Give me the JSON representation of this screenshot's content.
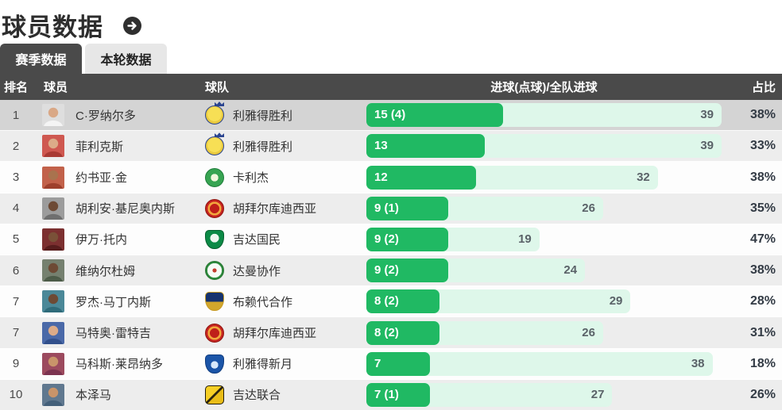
{
  "title": "球员数据",
  "title_arrow_icon": "arrow-right",
  "tabs": [
    {
      "label": "赛季数据",
      "active": true
    },
    {
      "label": "本轮数据",
      "active": false
    }
  ],
  "table": {
    "headers": {
      "rank": "排名",
      "player": "球员",
      "team": "球队",
      "goals": "进球(点球)/全队进球",
      "share": "占比"
    },
    "max_total": 39,
    "rows": [
      {
        "rank": "1",
        "player": "C·罗纳尔多",
        "team": "利雅得胜利",
        "goals_label": "15 (4)",
        "goals": 15,
        "team_total": 39,
        "share": "38%",
        "highlight": true,
        "avatar": {
          "bg": "#dedede",
          "jersey": "#f4f4f4",
          "skin": "#d9a886"
        },
        "logo": {
          "shape": "circle",
          "bg": "radial-gradient(circle at 50% 45%, #f7df55 0 55%, #e9c93e 56% 100%)",
          "border": "#2a4490",
          "crown": true
        }
      },
      {
        "rank": "2",
        "player": "菲利克斯",
        "team": "利雅得胜利",
        "goals_label": "13",
        "goals": 13,
        "team_total": 39,
        "share": "33%",
        "avatar": {
          "bg": "#cf5850",
          "jersey": "#a93a33",
          "skin": "#dcab88"
        },
        "logo": {
          "shape": "circle",
          "bg": "radial-gradient(circle at 50% 45%, #f7df55 0 55%, #e9c93e 56% 100%)",
          "border": "#2a4490",
          "crown": true
        }
      },
      {
        "rank": "3",
        "player": "约书亚·金",
        "team": "卡利杰",
        "goals_label": "12",
        "goals": 12,
        "team_total": 32,
        "share": "38%",
        "avatar": {
          "bg": "#c2614a",
          "jersey": "#9e3f2c",
          "skin": "#a9734e"
        },
        "logo": {
          "shape": "circle",
          "bg": "radial-gradient(circle at 50% 50%, #f1f7dd 0 30%, #37a452 31% 100%)",
          "border": "#1f7c3a"
        }
      },
      {
        "rank": "4",
        "player": "胡利安·基尼奥内斯",
        "team": "胡拜尔库迪西亚",
        "goals_label": "9 (1)",
        "goals": 9,
        "team_total": 26,
        "share": "35%",
        "avatar": {
          "bg": "#9c9c9c",
          "jersey": "#6f6f6f",
          "skin": "#6d4a35"
        },
        "logo": {
          "shape": "circle",
          "bg": "radial-gradient(circle, #bf1f1a 0 38%, #f2a73d 39% 55%, #c62421 56% 100%)",
          "border": "#8f1510"
        }
      },
      {
        "rank": "5",
        "player": "伊万·托内",
        "team": "吉达国民",
        "goals_label": "9 (2)",
        "goals": 9,
        "team_total": 19,
        "share": "47%",
        "avatar": {
          "bg": "#7c3030",
          "jersey": "#571d1d",
          "skin": "#7a5138"
        },
        "logo": {
          "shape": "shield",
          "bg": "radial-gradient(circle at 50% 42%, #eef7ef 0 32%, #0c8a46 33% 100%)",
          "border": "#06602f"
        }
      },
      {
        "rank": "6",
        "player": "维纳尔杜姆",
        "team": "达曼协作",
        "goals_label": "9 (2)",
        "goals": 9,
        "team_total": 24,
        "share": "38%",
        "avatar": {
          "bg": "#75806f",
          "jersey": "#4d5c49",
          "skin": "#6d4a35"
        },
        "logo": {
          "shape": "circle",
          "bg": "radial-gradient(circle, #c53c2e 0 16%, #f7fbf6 17% 58%, #2f8b3f 59% 100%)",
          "border": "#27742f"
        }
      },
      {
        "rank": "7",
        "player": "罗杰·马丁内斯",
        "team": "布赖代合作",
        "goals_label": "8 (2)",
        "goals": 8,
        "team_total": 29,
        "share": "28%",
        "avatar": {
          "bg": "#4b8898",
          "jersey": "#2f6b7a",
          "skin": "#6d4a35"
        },
        "logo": {
          "shape": "shield",
          "bg": "linear-gradient(180deg, #16336e 0 52%, #d2a62c 53% 100%)",
          "border": "#c79b25"
        }
      },
      {
        "rank": "7",
        "player": "马特奥·雷特吉",
        "team": "胡拜尔库迪西亚",
        "goals_label": "8 (2)",
        "goals": 8,
        "team_total": 26,
        "share": "31%",
        "avatar": {
          "bg": "#4a69a8",
          "jersey": "#32508c",
          "skin": "#dcab88"
        },
        "logo": {
          "shape": "circle",
          "bg": "radial-gradient(circle, #bf1f1a 0 38%, #f2a73d 39% 55%, #c62421 56% 100%)",
          "border": "#8f1510"
        }
      },
      {
        "rank": "9",
        "player": "马科斯·莱昂纳多",
        "team": "利雅得新月",
        "goals_label": "7",
        "goals": 7,
        "team_total": 38,
        "share": "18%",
        "avatar": {
          "bg": "#9c4a5e",
          "jersey": "#7c3350",
          "skin": "#c9946a"
        },
        "logo": {
          "shape": "shield",
          "bg": "radial-gradient(circle at 50% 55%, #d8e9fb 0 28%, #1b55a8 29% 100%)",
          "border": "#103c7e"
        }
      },
      {
        "rank": "10",
        "player": "本泽马",
        "team": "吉达联合",
        "goals_label": "7 (1)",
        "goals": 7,
        "team_total": 27,
        "share": "26%",
        "avatar": {
          "bg": "#60788f",
          "jersey": "#44607a",
          "skin": "#c9946a"
        },
        "logo": {
          "shape": "badge",
          "bg": "linear-gradient(135deg, #f6cf25 0 45%, #2b2410 46% 54%, #e9bd18 55% 100%)",
          "border": "#1f1a0a"
        }
      }
    ]
  },
  "colors": {
    "accent_green": "#20b963",
    "bar_track_mint": "#def7ea",
    "header_bg": "#4a4a4a",
    "active_tab_bg": "#4a4a4a",
    "inactive_tab_bg": "#e7e7e7",
    "highlight_row": "#d4d4d4",
    "zebra_row": "#ededed",
    "share_text": "#333b45"
  }
}
